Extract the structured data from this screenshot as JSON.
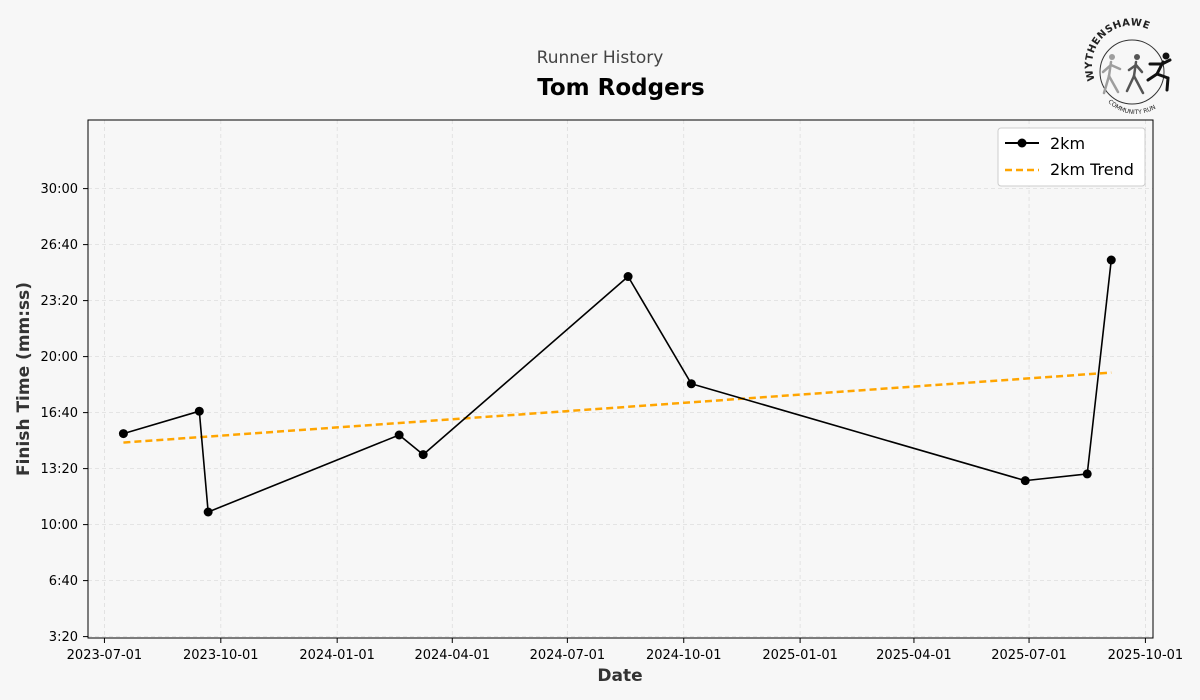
{
  "chart_data": {
    "type": "line",
    "subtitle": "Runner History",
    "title": "Tom Rodgers",
    "xlabel": "Date",
    "ylabel": "Finish Time (mm:ss)",
    "xlim": [
      "2023-06-18",
      "2025-10-07"
    ],
    "ylim": [
      195,
      2045
    ],
    "x_ticks": [
      "2023-07-01",
      "2023-10-01",
      "2024-01-01",
      "2024-04-01",
      "2024-07-01",
      "2024-10-01",
      "2025-01-01",
      "2025-04-01",
      "2025-07-01",
      "2025-10-01"
    ],
    "y_ticks": [
      200,
      400,
      600,
      800,
      1000,
      1200,
      1400,
      1600,
      1800
    ],
    "y_tick_labels": [
      "3:20",
      "6:40",
      "10:00",
      "13:20",
      "16:40",
      "20:00",
      "23:20",
      "26:40",
      "30:00"
    ],
    "grid": true,
    "legend_position": "top-right",
    "series": [
      {
        "name": "2km",
        "color": "#000000",
        "style": "solid-marker",
        "x": [
          "2023-07-16",
          "2023-09-14",
          "2023-09-21",
          "2024-02-19",
          "2024-03-09",
          "2024-08-18",
          "2024-10-07",
          "2025-06-28",
          "2025-08-16",
          "2025-09-04"
        ],
        "y": [
          925,
          1005,
          645,
          920,
          850,
          1486,
          1103,
          757,
          781,
          1545
        ]
      },
      {
        "name": "2km Trend",
        "color": "#FFA500",
        "style": "dashed",
        "x": [
          "2023-07-16",
          "2025-09-04"
        ],
        "y": [
          893,
          1143
        ]
      }
    ]
  },
  "logo": {
    "top_text": "WYTHENSHAWE",
    "bottom_text": "COMMUNITY RUN"
  }
}
